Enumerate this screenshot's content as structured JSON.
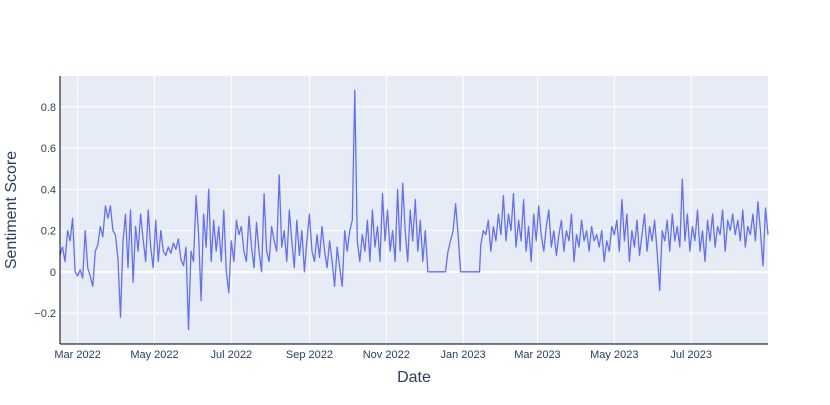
{
  "chart_data": {
    "type": "line",
    "title": "",
    "xlabel": "Date",
    "ylabel": "Sentiment Score",
    "x_range": [
      "2022-02-15",
      "2023-08-31"
    ],
    "ylim": [
      -0.35,
      0.95
    ],
    "x_ticks": [
      {
        "date": "2022-03-01",
        "label": "Mar 2022"
      },
      {
        "date": "2022-05-01",
        "label": "May 2022"
      },
      {
        "date": "2022-07-01",
        "label": "Jul 2022"
      },
      {
        "date": "2022-09-01",
        "label": "Sep 2022"
      },
      {
        "date": "2022-11-01",
        "label": "Nov 2022"
      },
      {
        "date": "2023-01-01",
        "label": "Jan 2023"
      },
      {
        "date": "2023-03-01",
        "label": "Mar 2023"
      },
      {
        "date": "2023-05-01",
        "label": "May 2023"
      },
      {
        "date": "2023-07-01",
        "label": "Jul 2023"
      }
    ],
    "y_ticks": [
      {
        "value": -0.2,
        "label": "−0.2"
      },
      {
        "value": 0,
        "label": "0"
      },
      {
        "value": 0.2,
        "label": "0.2"
      },
      {
        "value": 0.4,
        "label": "0.4"
      },
      {
        "value": 0.6,
        "label": "0.6"
      },
      {
        "value": 0.8,
        "label": "0.8"
      }
    ],
    "grid": true,
    "colors": {
      "line": "#636efa",
      "plot_bg": "#e5ecf6",
      "grid": "#ffffff",
      "axis_text": "#2a3f5f"
    },
    "series": [
      {
        "points": [
          [
            "2022-02-15",
            0.08
          ],
          [
            "2022-02-17",
            0.12
          ],
          [
            "2022-02-19",
            0.05
          ],
          [
            "2022-02-21",
            0.2
          ],
          [
            "2022-02-23",
            0.15
          ],
          [
            "2022-02-25",
            0.26
          ],
          [
            "2022-02-27",
            0.0
          ],
          [
            "2022-03-01",
            -0.02
          ],
          [
            "2022-03-03",
            0.01
          ],
          [
            "2022-03-05",
            -0.03
          ],
          [
            "2022-03-07",
            0.2
          ],
          [
            "2022-03-09",
            0.02
          ],
          [
            "2022-03-11",
            -0.02
          ],
          [
            "2022-03-13",
            -0.07
          ],
          [
            "2022-03-15",
            0.1
          ],
          [
            "2022-03-17",
            0.13
          ],
          [
            "2022-03-19",
            0.22
          ],
          [
            "2022-03-21",
            0.17
          ],
          [
            "2022-03-23",
            0.32
          ],
          [
            "2022-03-25",
            0.26
          ],
          [
            "2022-03-27",
            0.32
          ],
          [
            "2022-03-29",
            0.2
          ],
          [
            "2022-03-31",
            0.18
          ],
          [
            "2022-04-02",
            0.06
          ],
          [
            "2022-04-04",
            -0.22
          ],
          [
            "2022-04-06",
            0.15
          ],
          [
            "2022-04-08",
            0.28
          ],
          [
            "2022-04-10",
            0.02
          ],
          [
            "2022-04-12",
            0.3
          ],
          [
            "2022-04-14",
            -0.05
          ],
          [
            "2022-04-16",
            0.22
          ],
          [
            "2022-04-18",
            0.1
          ],
          [
            "2022-04-20",
            0.28
          ],
          [
            "2022-04-22",
            0.16
          ],
          [
            "2022-04-24",
            0.05
          ],
          [
            "2022-04-26",
            0.3
          ],
          [
            "2022-04-28",
            0.12
          ],
          [
            "2022-04-30",
            0.02
          ],
          [
            "2022-05-02",
            0.25
          ],
          [
            "2022-05-04",
            0.05
          ],
          [
            "2022-05-06",
            0.2
          ],
          [
            "2022-05-08",
            0.1
          ],
          [
            "2022-05-10",
            0.08
          ],
          [
            "2022-05-12",
            0.12
          ],
          [
            "2022-05-14",
            0.09
          ],
          [
            "2022-05-16",
            0.14
          ],
          [
            "2022-05-18",
            0.11
          ],
          [
            "2022-05-20",
            0.16
          ],
          [
            "2022-05-22",
            0.06
          ],
          [
            "2022-05-24",
            0.03
          ],
          [
            "2022-05-26",
            0.12
          ],
          [
            "2022-05-28",
            -0.28
          ],
          [
            "2022-05-30",
            0.1
          ],
          [
            "2022-06-01",
            0.05
          ],
          [
            "2022-06-03",
            0.37
          ],
          [
            "2022-06-05",
            0.18
          ],
          [
            "2022-06-07",
            -0.14
          ],
          [
            "2022-06-09",
            0.28
          ],
          [
            "2022-06-11",
            0.12
          ],
          [
            "2022-06-13",
            0.4
          ],
          [
            "2022-06-15",
            0.05
          ],
          [
            "2022-06-17",
            0.25
          ],
          [
            "2022-06-19",
            0.1
          ],
          [
            "2022-06-21",
            0.22
          ],
          [
            "2022-06-23",
            0.05
          ],
          [
            "2022-06-25",
            0.3
          ],
          [
            "2022-06-27",
            0.0
          ],
          [
            "2022-06-29",
            -0.1
          ],
          [
            "2022-07-01",
            0.15
          ],
          [
            "2022-07-03",
            0.05
          ],
          [
            "2022-07-05",
            0.25
          ],
          [
            "2022-07-07",
            0.18
          ],
          [
            "2022-07-09",
            0.22
          ],
          [
            "2022-07-11",
            0.1
          ],
          [
            "2022-07-13",
            0.05
          ],
          [
            "2022-07-15",
            0.27
          ],
          [
            "2022-07-17",
            0.12
          ],
          [
            "2022-07-19",
            0.02
          ],
          [
            "2022-07-21",
            0.24
          ],
          [
            "2022-07-23",
            0.1
          ],
          [
            "2022-07-25",
            0.0
          ],
          [
            "2022-07-27",
            0.38
          ],
          [
            "2022-07-29",
            0.1
          ],
          [
            "2022-07-31",
            0.05
          ],
          [
            "2022-08-02",
            0.22
          ],
          [
            "2022-08-04",
            0.15
          ],
          [
            "2022-08-06",
            0.1
          ],
          [
            "2022-08-08",
            0.47
          ],
          [
            "2022-08-10",
            0.12
          ],
          [
            "2022-08-12",
            0.2
          ],
          [
            "2022-08-14",
            0.05
          ],
          [
            "2022-08-16",
            0.3
          ],
          [
            "2022-08-18",
            0.15
          ],
          [
            "2022-08-20",
            0.02
          ],
          [
            "2022-08-22",
            0.25
          ],
          [
            "2022-08-24",
            0.08
          ],
          [
            "2022-08-26",
            0.2
          ],
          [
            "2022-08-28",
            0.0
          ],
          [
            "2022-08-30",
            0.15
          ],
          [
            "2022-09-01",
            0.28
          ],
          [
            "2022-09-03",
            0.1
          ],
          [
            "2022-09-05",
            0.05
          ],
          [
            "2022-09-07",
            0.18
          ],
          [
            "2022-09-09",
            0.07
          ],
          [
            "2022-09-11",
            0.22
          ],
          [
            "2022-09-13",
            0.1
          ],
          [
            "2022-09-15",
            0.02
          ],
          [
            "2022-09-17",
            0.15
          ],
          [
            "2022-09-19",
            0.05
          ],
          [
            "2022-09-21",
            -0.07
          ],
          [
            "2022-09-23",
            0.12
          ],
          [
            "2022-09-25",
            0.02
          ],
          [
            "2022-09-27",
            -0.07
          ],
          [
            "2022-09-29",
            0.2
          ],
          [
            "2022-10-01",
            0.1
          ],
          [
            "2022-10-03",
            0.2
          ],
          [
            "2022-10-05",
            0.25
          ],
          [
            "2022-10-07",
            0.88
          ],
          [
            "2022-10-09",
            0.15
          ],
          [
            "2022-10-11",
            0.05
          ],
          [
            "2022-10-13",
            0.18
          ],
          [
            "2022-10-15",
            0.1
          ],
          [
            "2022-10-17",
            0.25
          ],
          [
            "2022-10-19",
            0.05
          ],
          [
            "2022-10-21",
            0.3
          ],
          [
            "2022-10-23",
            0.12
          ],
          [
            "2022-10-25",
            0.22
          ],
          [
            "2022-10-27",
            0.05
          ],
          [
            "2022-10-29",
            0.38
          ],
          [
            "2022-10-31",
            0.15
          ],
          [
            "2022-11-02",
            0.3
          ],
          [
            "2022-11-04",
            0.1
          ],
          [
            "2022-11-06",
            0.2
          ],
          [
            "2022-11-08",
            0.05
          ],
          [
            "2022-11-10",
            0.4
          ],
          [
            "2022-11-12",
            0.1
          ],
          [
            "2022-11-14",
            0.43
          ],
          [
            "2022-11-16",
            0.2
          ],
          [
            "2022-11-18",
            0.05
          ],
          [
            "2022-11-20",
            0.3
          ],
          [
            "2022-11-22",
            0.15
          ],
          [
            "2022-11-24",
            0.35
          ],
          [
            "2022-11-26",
            0.1
          ],
          [
            "2022-11-28",
            0.25
          ],
          [
            "2022-11-30",
            0.05
          ],
          [
            "2022-12-02",
            0.2
          ],
          [
            "2022-12-04",
            0.0
          ],
          [
            "2022-12-18",
            0.0
          ],
          [
            "2022-12-20",
            0.1
          ],
          [
            "2022-12-22",
            0.15
          ],
          [
            "2022-12-24",
            0.2
          ],
          [
            "2022-12-26",
            0.33
          ],
          [
            "2022-12-28",
            0.18
          ],
          [
            "2022-12-30",
            0.0
          ],
          [
            "2023-01-14",
            0.0
          ],
          [
            "2023-01-15",
            0.13
          ],
          [
            "2023-01-17",
            0.2
          ],
          [
            "2023-01-19",
            0.18
          ],
          [
            "2023-01-21",
            0.25
          ],
          [
            "2023-01-23",
            0.1
          ],
          [
            "2023-01-25",
            0.22
          ],
          [
            "2023-01-27",
            0.15
          ],
          [
            "2023-01-29",
            0.28
          ],
          [
            "2023-01-31",
            0.18
          ],
          [
            "2023-02-02",
            0.37
          ],
          [
            "2023-02-04",
            0.15
          ],
          [
            "2023-02-06",
            0.28
          ],
          [
            "2023-02-08",
            0.2
          ],
          [
            "2023-02-10",
            0.38
          ],
          [
            "2023-02-12",
            0.12
          ],
          [
            "2023-02-14",
            0.25
          ],
          [
            "2023-02-16",
            0.15
          ],
          [
            "2023-02-18",
            0.35
          ],
          [
            "2023-02-20",
            0.1
          ],
          [
            "2023-02-22",
            0.22
          ],
          [
            "2023-02-24",
            0.05
          ],
          [
            "2023-02-26",
            0.28
          ],
          [
            "2023-02-28",
            0.15
          ],
          [
            "2023-03-02",
            0.32
          ],
          [
            "2023-03-04",
            0.18
          ],
          [
            "2023-03-06",
            0.1
          ],
          [
            "2023-03-08",
            0.22
          ],
          [
            "2023-03-10",
            0.3
          ],
          [
            "2023-03-12",
            0.12
          ],
          [
            "2023-03-14",
            0.2
          ],
          [
            "2023-03-16",
            0.08
          ],
          [
            "2023-03-18",
            0.18
          ],
          [
            "2023-03-20",
            0.25
          ],
          [
            "2023-03-22",
            0.1
          ],
          [
            "2023-03-24",
            0.2
          ],
          [
            "2023-03-26",
            0.15
          ],
          [
            "2023-03-28",
            0.28
          ],
          [
            "2023-03-30",
            0.05
          ],
          [
            "2023-04-01",
            0.18
          ],
          [
            "2023-04-03",
            0.12
          ],
          [
            "2023-04-05",
            0.25
          ],
          [
            "2023-04-07",
            0.15
          ],
          [
            "2023-04-09",
            0.2
          ],
          [
            "2023-04-11",
            0.1
          ],
          [
            "2023-04-13",
            0.22
          ],
          [
            "2023-04-15",
            0.15
          ],
          [
            "2023-04-17",
            0.18
          ],
          [
            "2023-04-19",
            0.12
          ],
          [
            "2023-04-21",
            0.2
          ],
          [
            "2023-04-23",
            0.05
          ],
          [
            "2023-04-25",
            0.15
          ],
          [
            "2023-04-27",
            0.1
          ],
          [
            "2023-04-29",
            0.22
          ],
          [
            "2023-05-01",
            0.18
          ],
          [
            "2023-05-03",
            0.25
          ],
          [
            "2023-05-05",
            0.1
          ],
          [
            "2023-05-07",
            0.35
          ],
          [
            "2023-05-09",
            0.15
          ],
          [
            "2023-05-11",
            0.28
          ],
          [
            "2023-05-13",
            0.05
          ],
          [
            "2023-05-15",
            0.2
          ],
          [
            "2023-05-17",
            0.12
          ],
          [
            "2023-05-19",
            0.25
          ],
          [
            "2023-05-21",
            0.08
          ],
          [
            "2023-05-23",
            0.18
          ],
          [
            "2023-05-25",
            0.28
          ],
          [
            "2023-05-27",
            0.1
          ],
          [
            "2023-05-29",
            0.22
          ],
          [
            "2023-05-31",
            0.15
          ],
          [
            "2023-06-02",
            0.25
          ],
          [
            "2023-06-04",
            0.1
          ],
          [
            "2023-06-06",
            -0.09
          ],
          [
            "2023-06-08",
            0.2
          ],
          [
            "2023-06-10",
            0.15
          ],
          [
            "2023-06-12",
            0.25
          ],
          [
            "2023-06-14",
            0.1
          ],
          [
            "2023-06-16",
            0.28
          ],
          [
            "2023-06-18",
            0.15
          ],
          [
            "2023-06-20",
            0.22
          ],
          [
            "2023-06-22",
            0.12
          ],
          [
            "2023-06-24",
            0.45
          ],
          [
            "2023-06-26",
            0.15
          ],
          [
            "2023-06-28",
            0.28
          ],
          [
            "2023-06-30",
            0.1
          ],
          [
            "2023-07-02",
            0.22
          ],
          [
            "2023-07-04",
            0.15
          ],
          [
            "2023-07-06",
            0.3
          ],
          [
            "2023-07-08",
            0.1
          ],
          [
            "2023-07-10",
            0.2
          ],
          [
            "2023-07-12",
            0.05
          ],
          [
            "2023-07-14",
            0.25
          ],
          [
            "2023-07-16",
            0.15
          ],
          [
            "2023-07-18",
            0.28
          ],
          [
            "2023-07-20",
            0.12
          ],
          [
            "2023-07-22",
            0.22
          ],
          [
            "2023-07-24",
            0.18
          ],
          [
            "2023-07-26",
            0.3
          ],
          [
            "2023-07-28",
            0.1
          ],
          [
            "2023-07-30",
            0.25
          ],
          [
            "2023-08-01",
            0.2
          ],
          [
            "2023-08-03",
            0.28
          ],
          [
            "2023-08-05",
            0.18
          ],
          [
            "2023-08-07",
            0.25
          ],
          [
            "2023-08-09",
            0.15
          ],
          [
            "2023-08-11",
            0.3
          ],
          [
            "2023-08-13",
            0.12
          ],
          [
            "2023-08-15",
            0.22
          ],
          [
            "2023-08-17",
            0.18
          ],
          [
            "2023-08-19",
            0.28
          ],
          [
            "2023-08-21",
            0.15
          ],
          [
            "2023-08-23",
            0.34
          ],
          [
            "2023-08-25",
            0.2
          ],
          [
            "2023-08-27",
            0.03
          ],
          [
            "2023-08-29",
            0.31
          ],
          [
            "2023-08-31",
            0.18
          ]
        ]
      }
    ]
  }
}
